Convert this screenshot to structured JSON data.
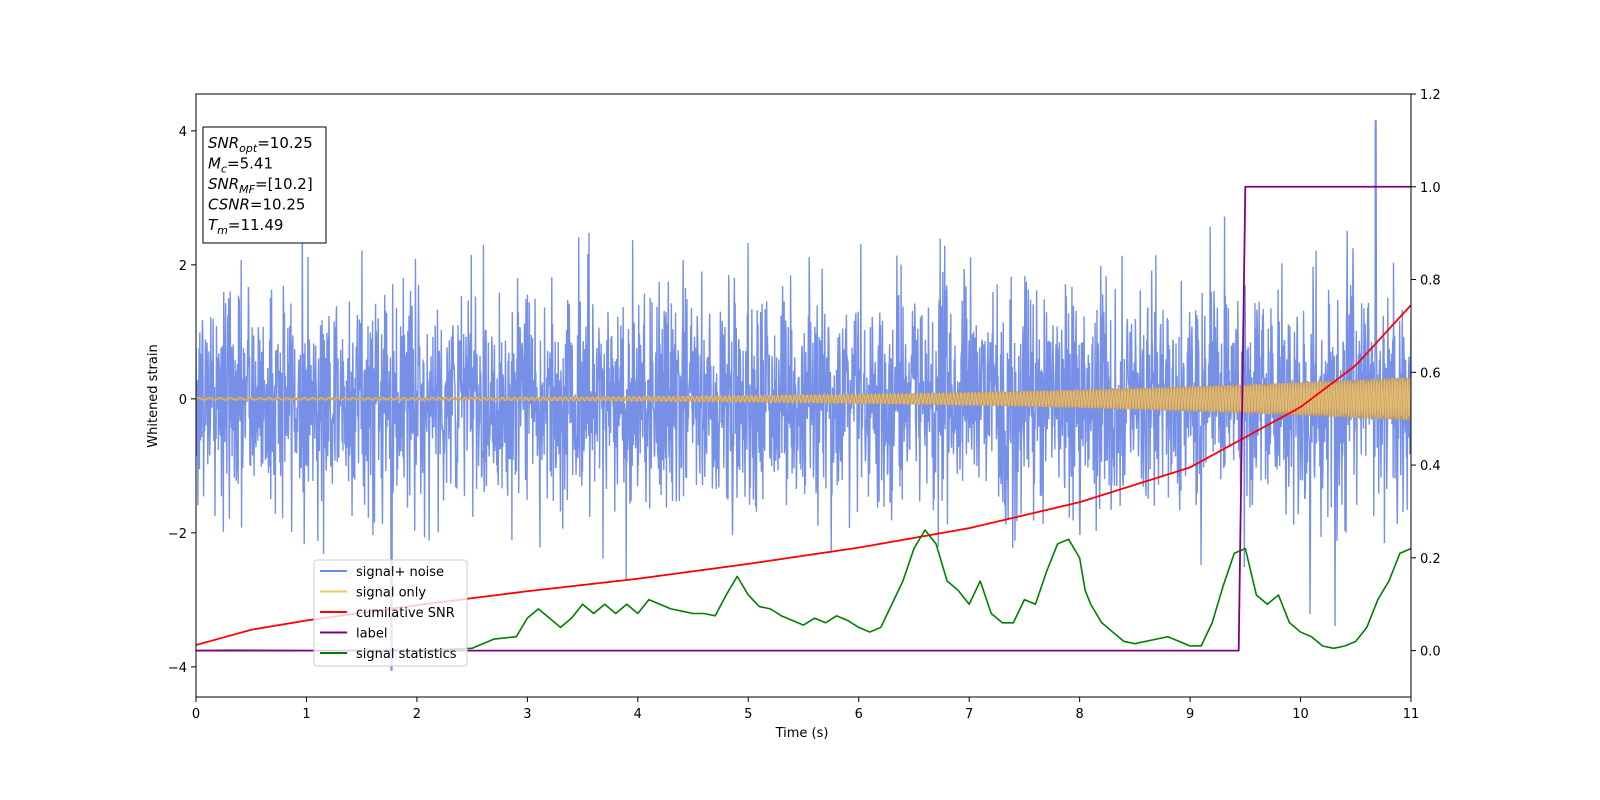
{
  "chart_data": {
    "type": "line",
    "xlabel": "Time (s)",
    "ylabel_left": "Whitened strain",
    "ylabel_right": "",
    "xlim": [
      0,
      11
    ],
    "ylim_left": [
      -4.45,
      4.55
    ],
    "ylim_right": [
      -0.1,
      1.2
    ],
    "x_ticks": [
      0,
      1,
      2,
      3,
      4,
      5,
      6,
      7,
      8,
      9,
      10,
      11
    ],
    "y_ticks_left": [
      -4,
      -2,
      0,
      2,
      4
    ],
    "y_ticks_right": [
      0.0,
      0.2,
      0.4,
      0.6,
      0.8,
      1.0,
      1.2
    ],
    "grid": false,
    "legend_position": "lower-left",
    "annotation": {
      "lines": [
        {
          "base": "SNR",
          "sub": "opt",
          "value": "=10.25"
        },
        {
          "base": "M",
          "sub": "c",
          "value": "=5.41"
        },
        {
          "base": "SNR",
          "sub": "MF",
          "value": "=[10.2]"
        },
        {
          "base": "CSNR",
          "sub": "",
          "value": "=10.25"
        },
        {
          "base": "T",
          "sub": "m",
          "value": "=11.49"
        }
      ]
    },
    "series": [
      {
        "name": "signal+ noise",
        "color": "#6f8ae6",
        "axis": "left",
        "kind": "noise",
        "std": 0.82,
        "peak_max": 4.15,
        "peak_min": -4.05
      },
      {
        "name": "signal only",
        "color": "#f5c66b",
        "overlap_color": "#b89a72",
        "axis": "left",
        "kind": "chirp",
        "amplitude_start": 0.02,
        "amplitude_end": 0.32
      },
      {
        "name": "cumilative SNR",
        "color": "#ff0000",
        "axis": "right",
        "x": [
          0,
          0.5,
          1,
          2,
          3,
          4,
          5,
          6,
          7,
          8,
          9,
          10,
          10.5,
          11
        ],
        "values": [
          0.012,
          0.045,
          0.065,
          0.098,
          0.128,
          0.155,
          0.187,
          0.222,
          0.264,
          0.32,
          0.395,
          0.525,
          0.615,
          0.745
        ]
      },
      {
        "name": "label",
        "color": "#800080",
        "axis": "right",
        "x": [
          0,
          9.44,
          9.5,
          11
        ],
        "values": [
          0,
          0,
          1,
          1
        ]
      },
      {
        "name": "signal statistics",
        "color": "#008000",
        "axis": "right",
        "x": [
          0,
          0.3,
          1,
          2,
          2.5,
          2.7,
          2.9,
          3.0,
          3.1,
          3.2,
          3.3,
          3.4,
          3.5,
          3.6,
          3.7,
          3.8,
          3.9,
          4.0,
          4.1,
          4.2,
          4.3,
          4.4,
          4.5,
          4.6,
          4.7,
          4.8,
          4.9,
          5.0,
          5.1,
          5.2,
          5.3,
          5.4,
          5.5,
          5.6,
          5.7,
          5.8,
          5.9,
          6.0,
          6.1,
          6.2,
          6.3,
          6.4,
          6.5,
          6.6,
          6.7,
          6.8,
          6.9,
          7.0,
          7.1,
          7.2,
          7.3,
          7.4,
          7.5,
          7.6,
          7.7,
          7.8,
          7.9,
          8.0,
          8.05,
          8.1,
          8.2,
          8.3,
          8.4,
          8.5,
          8.6,
          8.7,
          8.8,
          8.9,
          9.0,
          9.1,
          9.2,
          9.3,
          9.4,
          9.5,
          9.6,
          9.7,
          9.8,
          9.9,
          10.0,
          10.1,
          10.2,
          10.3,
          10.4,
          10.5,
          10.6,
          10.7,
          10.8,
          10.9,
          11.0
        ],
        "values": [
          0.0,
          0.001,
          0.0,
          0.0,
          0.005,
          0.025,
          0.03,
          0.07,
          0.09,
          0.07,
          0.05,
          0.07,
          0.1,
          0.08,
          0.1,
          0.08,
          0.1,
          0.08,
          0.11,
          0.1,
          0.09,
          0.085,
          0.08,
          0.08,
          0.075,
          0.12,
          0.16,
          0.12,
          0.095,
          0.09,
          0.075,
          0.065,
          0.055,
          0.07,
          0.06,
          0.075,
          0.065,
          0.05,
          0.04,
          0.05,
          0.1,
          0.15,
          0.22,
          0.26,
          0.23,
          0.15,
          0.13,
          0.1,
          0.15,
          0.08,
          0.06,
          0.06,
          0.11,
          0.1,
          0.17,
          0.23,
          0.24,
          0.2,
          0.13,
          0.1,
          0.06,
          0.04,
          0.02,
          0.015,
          0.02,
          0.025,
          0.03,
          0.02,
          0.01,
          0.01,
          0.06,
          0.14,
          0.21,
          0.22,
          0.12,
          0.1,
          0.12,
          0.06,
          0.04,
          0.03,
          0.01,
          0.005,
          0.01,
          0.02,
          0.05,
          0.11,
          0.15,
          0.21,
          0.22
        ]
      }
    ]
  }
}
